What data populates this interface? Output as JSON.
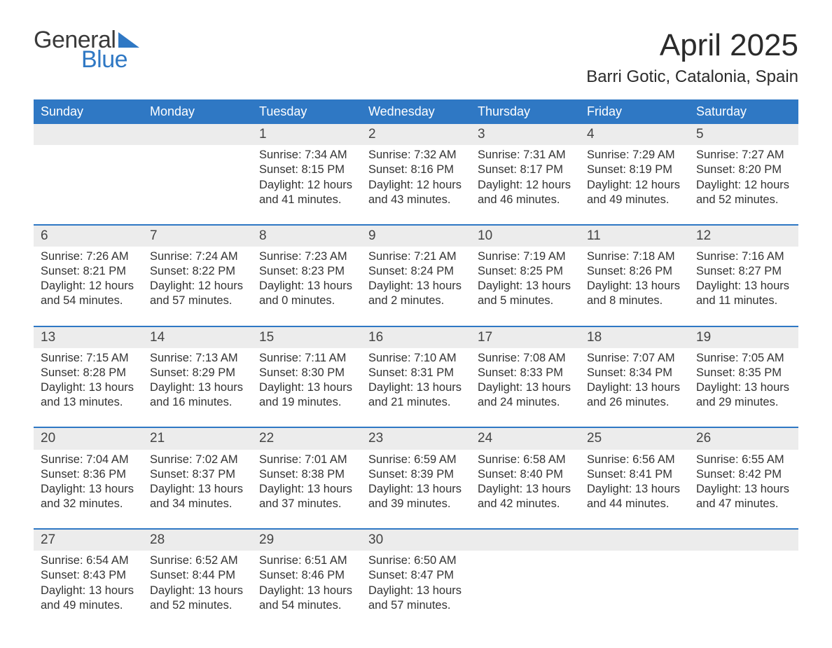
{
  "logo": {
    "text1": "General",
    "text2": "Blue",
    "accent": "#2f78c4",
    "dark": "#3a3a3a"
  },
  "title": "April 2025",
  "location": "Barri Gotic, Catalonia, Spain",
  "colors": {
    "header_bg": "#2f78c4",
    "header_text": "#ffffff",
    "daynum_bg": "#ececec",
    "week_border": "#2f78c4",
    "body_text": "#333333",
    "bg": "#ffffff"
  },
  "fonts": {
    "title_size": 44,
    "location_size": 24,
    "head_size": 18,
    "cell_size": 16.5,
    "daynum_size": 19
  },
  "day_labels": [
    "Sunday",
    "Monday",
    "Tuesday",
    "Wednesday",
    "Thursday",
    "Friday",
    "Saturday"
  ],
  "weeks": [
    [
      null,
      null,
      {
        "n": "1",
        "sr": "Sunrise: 7:34 AM",
        "ss": "Sunset: 8:15 PM",
        "dl1": "Daylight: 12 hours",
        "dl2": "and 41 minutes."
      },
      {
        "n": "2",
        "sr": "Sunrise: 7:32 AM",
        "ss": "Sunset: 8:16 PM",
        "dl1": "Daylight: 12 hours",
        "dl2": "and 43 minutes."
      },
      {
        "n": "3",
        "sr": "Sunrise: 7:31 AM",
        "ss": "Sunset: 8:17 PM",
        "dl1": "Daylight: 12 hours",
        "dl2": "and 46 minutes."
      },
      {
        "n": "4",
        "sr": "Sunrise: 7:29 AM",
        "ss": "Sunset: 8:19 PM",
        "dl1": "Daylight: 12 hours",
        "dl2": "and 49 minutes."
      },
      {
        "n": "5",
        "sr": "Sunrise: 7:27 AM",
        "ss": "Sunset: 8:20 PM",
        "dl1": "Daylight: 12 hours",
        "dl2": "and 52 minutes."
      }
    ],
    [
      {
        "n": "6",
        "sr": "Sunrise: 7:26 AM",
        "ss": "Sunset: 8:21 PM",
        "dl1": "Daylight: 12 hours",
        "dl2": "and 54 minutes."
      },
      {
        "n": "7",
        "sr": "Sunrise: 7:24 AM",
        "ss": "Sunset: 8:22 PM",
        "dl1": "Daylight: 12 hours",
        "dl2": "and 57 minutes."
      },
      {
        "n": "8",
        "sr": "Sunrise: 7:23 AM",
        "ss": "Sunset: 8:23 PM",
        "dl1": "Daylight: 13 hours",
        "dl2": "and 0 minutes."
      },
      {
        "n": "9",
        "sr": "Sunrise: 7:21 AM",
        "ss": "Sunset: 8:24 PM",
        "dl1": "Daylight: 13 hours",
        "dl2": "and 2 minutes."
      },
      {
        "n": "10",
        "sr": "Sunrise: 7:19 AM",
        "ss": "Sunset: 8:25 PM",
        "dl1": "Daylight: 13 hours",
        "dl2": "and 5 minutes."
      },
      {
        "n": "11",
        "sr": "Sunrise: 7:18 AM",
        "ss": "Sunset: 8:26 PM",
        "dl1": "Daylight: 13 hours",
        "dl2": "and 8 minutes."
      },
      {
        "n": "12",
        "sr": "Sunrise: 7:16 AM",
        "ss": "Sunset: 8:27 PM",
        "dl1": "Daylight: 13 hours",
        "dl2": "and 11 minutes."
      }
    ],
    [
      {
        "n": "13",
        "sr": "Sunrise: 7:15 AM",
        "ss": "Sunset: 8:28 PM",
        "dl1": "Daylight: 13 hours",
        "dl2": "and 13 minutes."
      },
      {
        "n": "14",
        "sr": "Sunrise: 7:13 AM",
        "ss": "Sunset: 8:29 PM",
        "dl1": "Daylight: 13 hours",
        "dl2": "and 16 minutes."
      },
      {
        "n": "15",
        "sr": "Sunrise: 7:11 AM",
        "ss": "Sunset: 8:30 PM",
        "dl1": "Daylight: 13 hours",
        "dl2": "and 19 minutes."
      },
      {
        "n": "16",
        "sr": "Sunrise: 7:10 AM",
        "ss": "Sunset: 8:31 PM",
        "dl1": "Daylight: 13 hours",
        "dl2": "and 21 minutes."
      },
      {
        "n": "17",
        "sr": "Sunrise: 7:08 AM",
        "ss": "Sunset: 8:33 PM",
        "dl1": "Daylight: 13 hours",
        "dl2": "and 24 minutes."
      },
      {
        "n": "18",
        "sr": "Sunrise: 7:07 AM",
        "ss": "Sunset: 8:34 PM",
        "dl1": "Daylight: 13 hours",
        "dl2": "and 26 minutes."
      },
      {
        "n": "19",
        "sr": "Sunrise: 7:05 AM",
        "ss": "Sunset: 8:35 PM",
        "dl1": "Daylight: 13 hours",
        "dl2": "and 29 minutes."
      }
    ],
    [
      {
        "n": "20",
        "sr": "Sunrise: 7:04 AM",
        "ss": "Sunset: 8:36 PM",
        "dl1": "Daylight: 13 hours",
        "dl2": "and 32 minutes."
      },
      {
        "n": "21",
        "sr": "Sunrise: 7:02 AM",
        "ss": "Sunset: 8:37 PM",
        "dl1": "Daylight: 13 hours",
        "dl2": "and 34 minutes."
      },
      {
        "n": "22",
        "sr": "Sunrise: 7:01 AM",
        "ss": "Sunset: 8:38 PM",
        "dl1": "Daylight: 13 hours",
        "dl2": "and 37 minutes."
      },
      {
        "n": "23",
        "sr": "Sunrise: 6:59 AM",
        "ss": "Sunset: 8:39 PM",
        "dl1": "Daylight: 13 hours",
        "dl2": "and 39 minutes."
      },
      {
        "n": "24",
        "sr": "Sunrise: 6:58 AM",
        "ss": "Sunset: 8:40 PM",
        "dl1": "Daylight: 13 hours",
        "dl2": "and 42 minutes."
      },
      {
        "n": "25",
        "sr": "Sunrise: 6:56 AM",
        "ss": "Sunset: 8:41 PM",
        "dl1": "Daylight: 13 hours",
        "dl2": "and 44 minutes."
      },
      {
        "n": "26",
        "sr": "Sunrise: 6:55 AM",
        "ss": "Sunset: 8:42 PM",
        "dl1": "Daylight: 13 hours",
        "dl2": "and 47 minutes."
      }
    ],
    [
      {
        "n": "27",
        "sr": "Sunrise: 6:54 AM",
        "ss": "Sunset: 8:43 PM",
        "dl1": "Daylight: 13 hours",
        "dl2": "and 49 minutes."
      },
      {
        "n": "28",
        "sr": "Sunrise: 6:52 AM",
        "ss": "Sunset: 8:44 PM",
        "dl1": "Daylight: 13 hours",
        "dl2": "and 52 minutes."
      },
      {
        "n": "29",
        "sr": "Sunrise: 6:51 AM",
        "ss": "Sunset: 8:46 PM",
        "dl1": "Daylight: 13 hours",
        "dl2": "and 54 minutes."
      },
      {
        "n": "30",
        "sr": "Sunrise: 6:50 AM",
        "ss": "Sunset: 8:47 PM",
        "dl1": "Daylight: 13 hours",
        "dl2": "and 57 minutes."
      },
      null,
      null,
      null
    ]
  ]
}
